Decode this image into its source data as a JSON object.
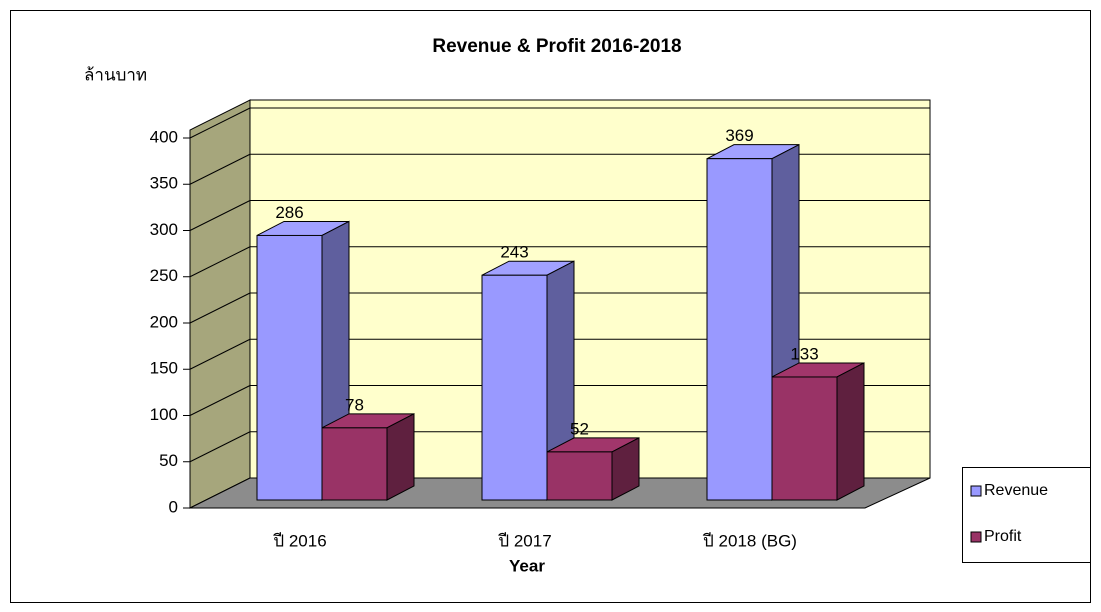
{
  "chart_data": {
    "type": "bar3d",
    "title": "Revenue & Profit 2016-2018",
    "y_label": "ล้านบาท",
    "x_label": "Year",
    "categories": [
      "ปี 2016",
      "ปี 2017",
      "ปี 2018 (BG)"
    ],
    "series": [
      {
        "name": "Revenue",
        "color": "#9999ff",
        "values": [
          286,
          243,
          369
        ]
      },
      {
        "name": "Profit",
        "color": "#993366",
        "values": [
          78,
          52,
          133
        ]
      }
    ],
    "ylim": [
      0,
      400
    ],
    "yticks": [
      0,
      50,
      100,
      150,
      200,
      250,
      300,
      350,
      400
    ],
    "grid": true,
    "legend": "right"
  }
}
